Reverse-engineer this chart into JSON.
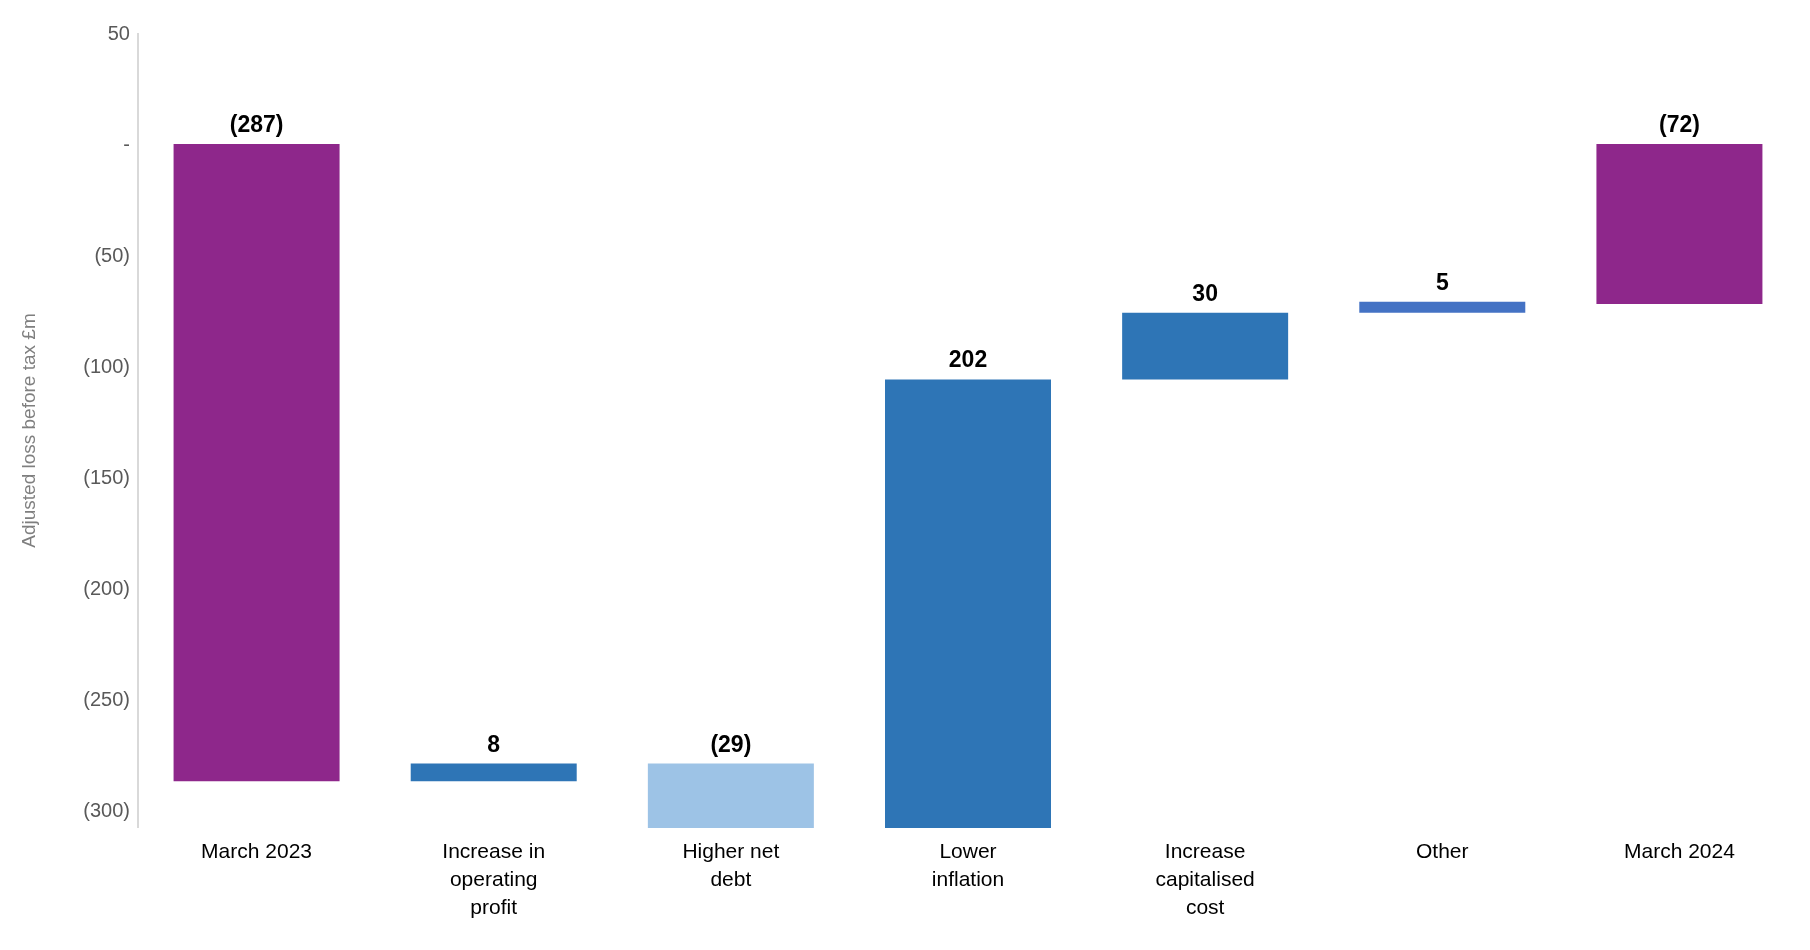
{
  "chart_data": {
    "type": "bar",
    "ylabel": "Adjusted loss before tax £m",
    "categories": [
      "March 2023",
      "Increase in operating profit",
      "Higher net debt",
      "Lower inflation",
      "Increase capitalised cost",
      "Other",
      "March 2024"
    ],
    "values": [
      -287,
      8,
      -29,
      202,
      30,
      5,
      -72
    ],
    "base": [
      0,
      -287,
      -279,
      -308,
      -106,
      -76,
      0
    ],
    "colors": [
      "#8e278b",
      "#2e75b6",
      "#9dc3e6",
      "#2e75b6",
      "#2e75b6",
      "#4472c4",
      "#8e278b"
    ],
    "value_labels": [
      "(287)",
      "8",
      "(29)",
      "202",
      "30",
      "5",
      "(72)"
    ],
    "ylim": [
      -308,
      50
    ],
    "yticks": [
      50,
      {
        "value": 0,
        "label": "-"
      },
      {
        "value": -50,
        "label": "(50)"
      },
      {
        "value": -100,
        "label": "(100)"
      },
      {
        "value": -150,
        "label": "(150)"
      },
      {
        "value": -200,
        "label": "(200)"
      },
      {
        "value": -250,
        "label": "(250)"
      },
      {
        "value": -300,
        "label": "(300)"
      }
    ],
    "grid": false,
    "legend": false
  }
}
